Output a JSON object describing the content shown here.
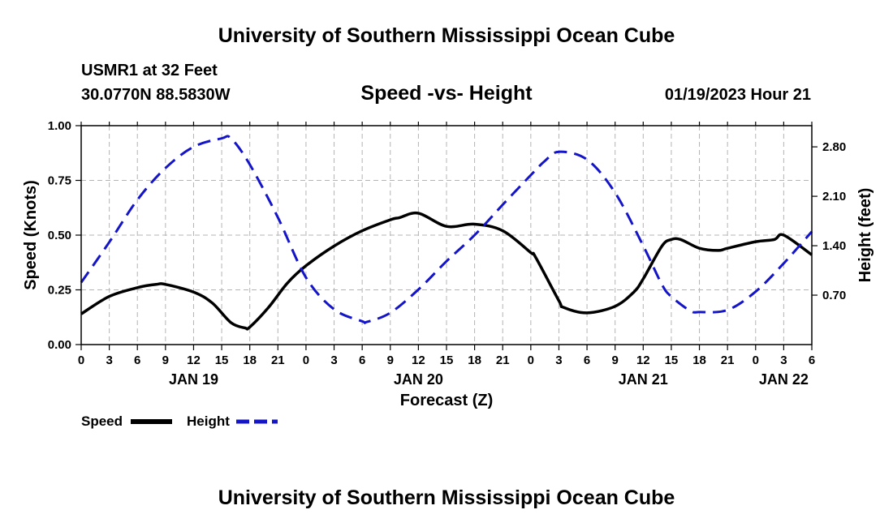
{
  "header": {
    "title": "University of Southern Mississippi Ocean Cube",
    "station": "USMR1 at 32 Feet",
    "coords": "30.0770N  88.5830W",
    "chart_title": "Speed -vs- Height",
    "timestamp": "01/19/2023 Hour 21"
  },
  "footer": {
    "title": "University of Southern Mississippi Ocean Cube"
  },
  "colors": {
    "speed": "#000000",
    "height": "#1414c8",
    "grid": "#b4b4b4"
  },
  "chart_data": {
    "type": "line",
    "title": "Speed -vs- Height",
    "xlabel": "Forecast (Z)",
    "ylabel": "Speed (Knots)",
    "y2label": "Height (feet)",
    "x_range": [
      0,
      78
    ],
    "ylim": [
      0,
      1
    ],
    "y2lim": [
      0,
      3.1
    ],
    "x_ticks": [
      0,
      3,
      6,
      9,
      12,
      15,
      18,
      21,
      24,
      27,
      30,
      33,
      36,
      39,
      42,
      45,
      48,
      51,
      54,
      57,
      60,
      63,
      66,
      69,
      72,
      75,
      78
    ],
    "x_tick_labels": [
      "0",
      "3",
      "6",
      "9",
      "12",
      "15",
      "18",
      "21",
      "0",
      "3",
      "6",
      "9",
      "12",
      "15",
      "18",
      "21",
      "0",
      "3",
      "6",
      "9",
      "12",
      "15",
      "18",
      "21",
      "0",
      "3",
      "6"
    ],
    "date_labels": [
      {
        "x": 12,
        "label": "JAN 19"
      },
      {
        "x": 36,
        "label": "JAN 20"
      },
      {
        "x": 60,
        "label": "JAN 21"
      },
      {
        "x": 75,
        "label": "JAN 22"
      }
    ],
    "y_ticks": [
      0,
      0.25,
      0.5,
      0.75,
      1.0
    ],
    "y_tick_labels": [
      "0.00",
      "0.25",
      "0.50",
      "0.75",
      "1.00"
    ],
    "y2_ticks": [
      0.7,
      1.4,
      2.1,
      2.8
    ],
    "y2_tick_labels": [
      "0.70",
      "1.40",
      "2.10",
      "2.80"
    ],
    "grid": true,
    "legend_position": "bottom-left",
    "series": [
      {
        "name": "Speed",
        "axis": "left",
        "style": "solid",
        "x": [
          0,
          3,
          6,
          8,
          9,
          12,
          14,
          16,
          17.5,
          18,
          20,
          22,
          24,
          27,
          30,
          33,
          34,
          36,
          39,
          42,
          45,
          48,
          48.5,
          51,
          51.5,
          54,
          57,
          59,
          60,
          62,
          63,
          64,
          66,
          68,
          69,
          72,
          74,
          75,
          78
        ],
        "y": [
          0.14,
          0.22,
          0.26,
          0.275,
          0.275,
          0.24,
          0.19,
          0.1,
          0.076,
          0.08,
          0.17,
          0.28,
          0.36,
          0.45,
          0.52,
          0.57,
          0.58,
          0.6,
          0.54,
          0.55,
          0.52,
          0.42,
          0.4,
          0.2,
          0.17,
          0.145,
          0.175,
          0.24,
          0.3,
          0.45,
          0.48,
          0.48,
          0.44,
          0.43,
          0.44,
          0.47,
          0.48,
          0.5,
          0.41
        ]
      },
      {
        "name": "Height",
        "axis": "right",
        "style": "dashed",
        "x": [
          0,
          3,
          6,
          9,
          12,
          15,
          16,
          18,
          21,
          24,
          27,
          30,
          30.5,
          33,
          36,
          39,
          42,
          45,
          48,
          49.5,
          51,
          54,
          57,
          60,
          62,
          63,
          65,
          66,
          69,
          72,
          75,
          78
        ],
        "y": [
          0.88,
          1.45,
          2.05,
          2.5,
          2.8,
          2.92,
          2.92,
          2.55,
          1.8,
          0.95,
          0.5,
          0.33,
          0.32,
          0.45,
          0.78,
          1.18,
          1.55,
          1.98,
          2.4,
          2.6,
          2.73,
          2.62,
          2.15,
          1.4,
          0.85,
          0.68,
          0.48,
          0.46,
          0.49,
          0.75,
          1.15,
          1.6
        ]
      }
    ]
  }
}
